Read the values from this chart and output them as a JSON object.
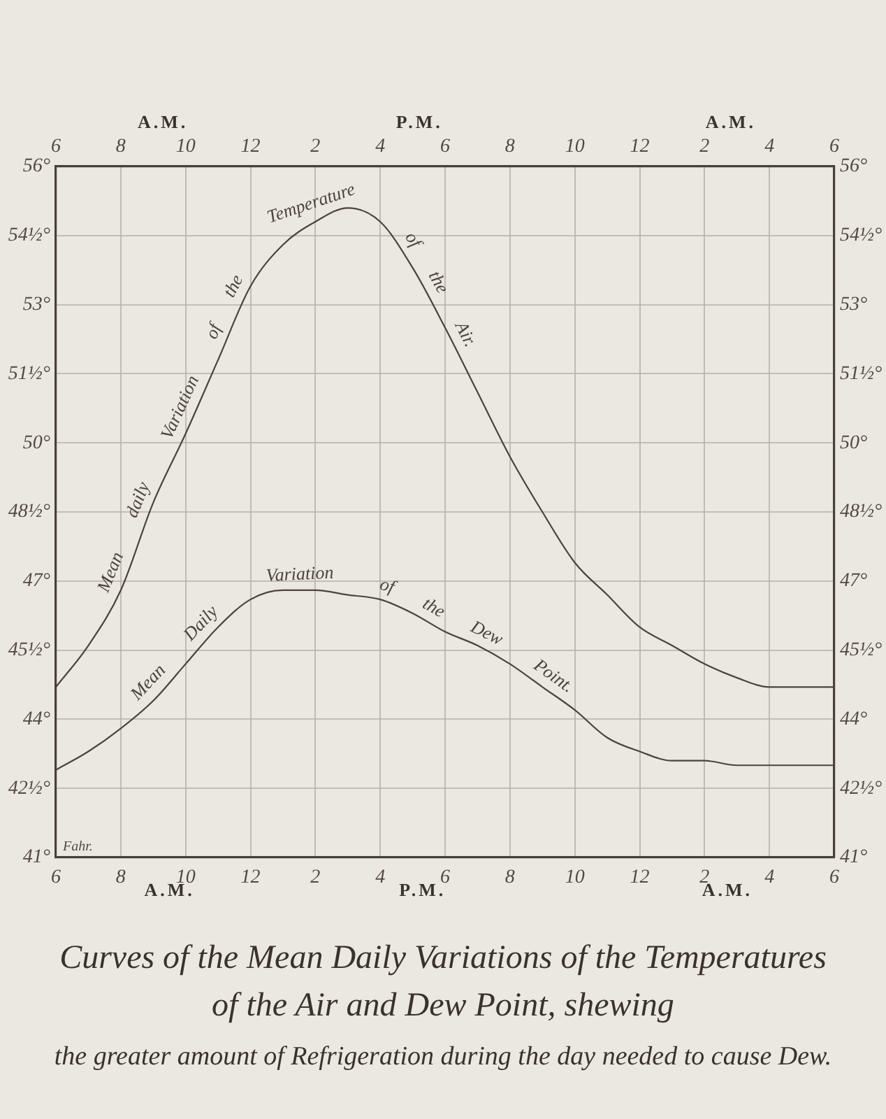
{
  "chart_data": {
    "type": "line",
    "title": "Curves of the Mean Daily Variations of the Temperatures of the Air and Dew Point, shewing",
    "subtitle": "the greater amount of Refrigeration during the day needed to cause Dew.",
    "ylabel": "Fahr.",
    "categories": [
      "6",
      null,
      "8",
      null,
      "10",
      null,
      "12",
      null,
      "2",
      null,
      "4",
      null,
      "6",
      null,
      "8",
      null,
      "10",
      null,
      "12",
      null,
      "2",
      null,
      "4",
      null,
      "6"
    ],
    "series": [
      {
        "name": "Mean daily Variation of the Temperature of the Air.",
        "color": "#4d433a",
        "values": [
          44.7,
          45.6,
          46.8,
          48.7,
          50.2,
          51.8,
          53.4,
          54.3,
          54.8,
          55.1,
          54.8,
          53.8,
          52.5,
          51.1,
          49.7,
          48.5,
          47.4,
          46.7,
          46.0,
          45.6,
          45.2,
          44.9,
          44.7,
          44.7,
          44.7
        ]
      },
      {
        "name": "Mean Daily Variation of the Dew Point.",
        "color": "#4d433a",
        "values": [
          42.9,
          43.3,
          43.8,
          44.4,
          45.2,
          46.0,
          46.6,
          46.8,
          46.8,
          46.7,
          46.6,
          46.3,
          45.9,
          45.6,
          45.2,
          44.7,
          44.2,
          43.6,
          43.3,
          43.1,
          43.1,
          43.0,
          43.0,
          43.0,
          43.0
        ]
      }
    ],
    "ylim": [
      41,
      56
    ],
    "yticks": [
      {
        "value": 41,
        "label": "41°"
      },
      {
        "value": 42.5,
        "label": "42½°"
      },
      {
        "value": 44,
        "label": "44°"
      },
      {
        "value": 45.5,
        "label": "45½°"
      },
      {
        "value": 47,
        "label": "47°"
      },
      {
        "value": 48.5,
        "label": "48½°"
      },
      {
        "value": 50,
        "label": "50°"
      },
      {
        "value": 51.5,
        "label": "51½°"
      },
      {
        "value": 53,
        "label": "53°"
      },
      {
        "value": 54.5,
        "label": "54½°"
      },
      {
        "value": 56,
        "label": "56°"
      }
    ],
    "y2lim": [
      41,
      56
    ],
    "y2ticks": [
      {
        "value": 41,
        "label": "41°"
      },
      {
        "value": 42.5,
        "label": "42½°"
      },
      {
        "value": 44,
        "label": "44°"
      },
      {
        "value": 45.5,
        "label": "45½°"
      },
      {
        "value": 47,
        "label": "47°"
      },
      {
        "value": 48.5,
        "label": "48½°"
      },
      {
        "value": 50,
        "label": "50°"
      },
      {
        "value": 51.5,
        "label": "51½°"
      },
      {
        "value": 53,
        "label": "53°"
      },
      {
        "value": 54.5,
        "label": "54½°"
      },
      {
        "value": 56,
        "label": "56°"
      }
    ],
    "grid": true,
    "annotations": [
      "A.M.",
      "P.M.",
      "A.M.",
      "A.M.",
      "P.M.",
      "A.M."
    ]
  }
}
